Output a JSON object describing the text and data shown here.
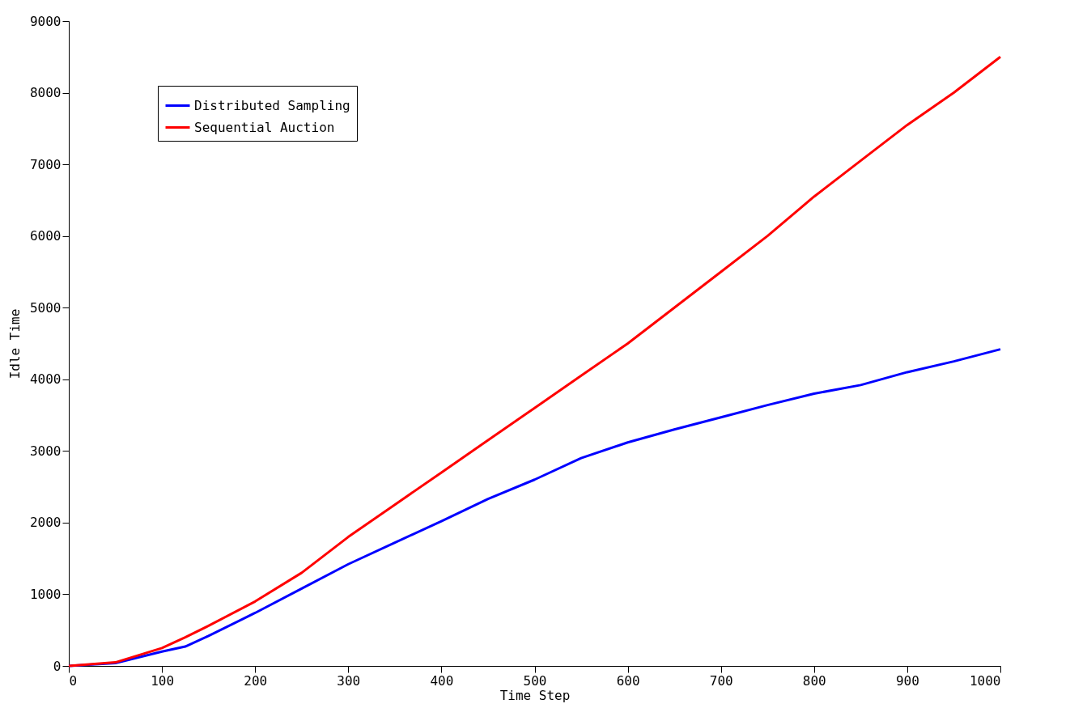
{
  "chart_data": {
    "type": "line",
    "xlabel": "Time Step",
    "ylabel": "Idle Time",
    "x": [
      0,
      50,
      100,
      125,
      150,
      200,
      250,
      300,
      350,
      400,
      450,
      500,
      550,
      600,
      650,
      700,
      750,
      800,
      850,
      900,
      950,
      1000
    ],
    "series": [
      {
        "name": "Distributed Sampling",
        "color": "#0000ff",
        "values": [
          0,
          40,
          200,
          270,
          420,
          740,
          1080,
          1420,
          1720,
          2020,
          2330,
          2600,
          2900,
          3120,
          3300,
          3470,
          3640,
          3800,
          3920,
          4100,
          4250,
          4420
        ]
      },
      {
        "name": "Sequential Auction",
        "color": "#ff0000",
        "values": [
          0,
          50,
          250,
          400,
          560,
          900,
          1300,
          1800,
          2250,
          2700,
          3150,
          3600,
          4050,
          4500,
          5000,
          5500,
          6000,
          6550,
          7050,
          7550,
          8000,
          8500
        ]
      }
    ],
    "xlim": [
      0,
      1000
    ],
    "xticks": [
      0,
      100,
      200,
      300,
      400,
      500,
      600,
      700,
      800,
      900,
      1000
    ],
    "ylim": [
      0,
      9000
    ],
    "yticks": [
      0,
      1000,
      2000,
      3000,
      4000,
      5000,
      6000,
      7000,
      8000,
      9000
    ],
    "legend": "top left",
    "grid": false,
    "marker": "none",
    "line_style": "solid"
  }
}
